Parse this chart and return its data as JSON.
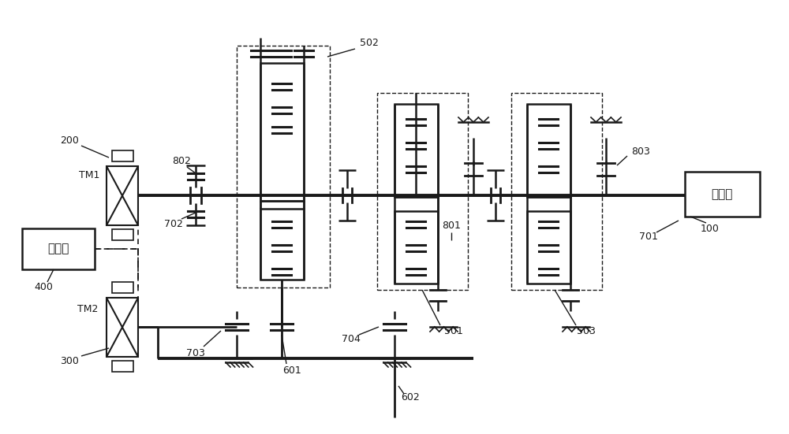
{
  "bg_color": "#ffffff",
  "lc": "#1a1a1a",
  "labels": {
    "engine": "发动机",
    "battery": "电池组",
    "tm1": "TM1",
    "tm2": "TM2",
    "n100": "100",
    "n200": "200",
    "n300": "300",
    "n400": "400",
    "n501": "501",
    "n502": "502",
    "n503": "503",
    "n601": "601",
    "n602": "602",
    "n701": "701",
    "n702": "702",
    "n703": "703",
    "n704": "704",
    "n801": "801",
    "n802": "802",
    "n803": "803"
  }
}
